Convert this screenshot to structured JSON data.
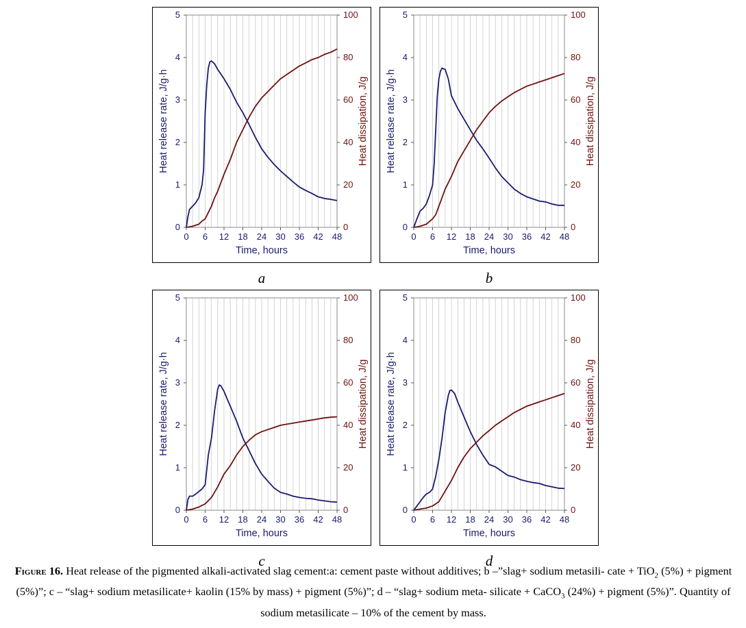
{
  "chart_data": [
    {
      "panel": "a",
      "type": "line",
      "xlabel": "Time, hours",
      "ylabel_left": "Heat release rate, J/g·h",
      "ylabel_right": "Heat dissipation, J/g",
      "xlim": [
        0,
        48
      ],
      "ylim_left": [
        0,
        5
      ],
      "ylim_right": [
        0,
        100
      ],
      "x_ticks": [
        "0",
        "6",
        "12",
        "18",
        "24",
        "30",
        "36",
        "42",
        "48"
      ],
      "y_ticks_left": [
        "0",
        "1",
        "2",
        "3",
        "4",
        "5"
      ],
      "y_ticks_right": [
        "0",
        "20",
        "40",
        "60",
        "80",
        "100"
      ],
      "grid": "vertical",
      "colors": {
        "rate": "#1a1a6e",
        "dissipation": "#6e1010"
      },
      "series": [
        {
          "axis": "left",
          "x": [
            0,
            0.5,
            1,
            2,
            3,
            4,
            5,
            5.5,
            6,
            6.5,
            7,
            7.5,
            8,
            9,
            10,
            12,
            14,
            16,
            18,
            20,
            22,
            24,
            26,
            28,
            30,
            32,
            34,
            36,
            38,
            40,
            42,
            44,
            46,
            48
          ],
          "y": [
            0,
            0.25,
            0.42,
            0.5,
            0.58,
            0.7,
            1.0,
            1.35,
            2.7,
            3.35,
            3.75,
            3.9,
            3.92,
            3.85,
            3.72,
            3.5,
            3.25,
            2.95,
            2.7,
            2.42,
            2.12,
            1.85,
            1.65,
            1.48,
            1.33,
            1.2,
            1.07,
            0.95,
            0.87,
            0.8,
            0.72,
            0.68,
            0.66,
            0.63
          ]
        },
        {
          "axis": "right",
          "x": [
            0,
            2,
            4,
            5,
            6,
            7,
            8,
            9,
            10,
            12,
            14,
            16,
            18,
            20,
            22,
            24,
            26,
            28,
            30,
            32,
            34,
            36,
            38,
            40,
            42,
            44,
            46,
            48
          ],
          "y": [
            0,
            0.5,
            1.5,
            3,
            4,
            7,
            10,
            14,
            17,
            25,
            32,
            40,
            46,
            52,
            57,
            61,
            64,
            67,
            70,
            72,
            74,
            76,
            77.5,
            79,
            80,
            81.5,
            82.5,
            84
          ]
        }
      ]
    },
    {
      "panel": "b",
      "type": "line",
      "xlabel": "Time, hours",
      "ylabel_left": "Heat release rate, J/g·h",
      "ylabel_right": "Heat dissipation, J/g",
      "xlim": [
        0,
        48
      ],
      "ylim_left": [
        0,
        5
      ],
      "ylim_right": [
        0,
        100
      ],
      "x_ticks": [
        "0",
        "6",
        "12",
        "18",
        "24",
        "30",
        "36",
        "42",
        "48"
      ],
      "y_ticks_left": [
        "0",
        "1",
        "2",
        "3",
        "4",
        "5"
      ],
      "y_ticks_right": [
        "0",
        "20",
        "40",
        "60",
        "80",
        "100"
      ],
      "grid": "vertical",
      "colors": {
        "rate": "#1a1a6e",
        "dissipation": "#6e1010"
      },
      "series": [
        {
          "axis": "left",
          "x": [
            0,
            1,
            2,
            3,
            4,
            5,
            6,
            6.5,
            7,
            7.5,
            8,
            8.5,
            9,
            10,
            11,
            12,
            14,
            16,
            18,
            20,
            22,
            24,
            26,
            28,
            30,
            32,
            34,
            36,
            38,
            40,
            42,
            44,
            46,
            48
          ],
          "y": [
            0,
            0.2,
            0.38,
            0.45,
            0.55,
            0.75,
            1.0,
            1.5,
            2.3,
            3.1,
            3.5,
            3.68,
            3.75,
            3.72,
            3.5,
            3.1,
            2.8,
            2.55,
            2.3,
            2.05,
            1.85,
            1.63,
            1.4,
            1.2,
            1.05,
            0.9,
            0.8,
            0.72,
            0.67,
            0.62,
            0.6,
            0.55,
            0.52,
            0.52
          ]
        },
        {
          "axis": "right",
          "x": [
            0,
            2,
            4,
            6,
            7,
            8,
            9,
            10,
            12,
            14,
            16,
            18,
            20,
            22,
            24,
            26,
            28,
            30,
            32,
            34,
            36,
            38,
            40,
            42,
            44,
            46,
            48
          ],
          "y": [
            0,
            0.5,
            1.5,
            4,
            6,
            10,
            14,
            18,
            24,
            31,
            36,
            41,
            46,
            50,
            54,
            57,
            59.5,
            61.5,
            63.5,
            65,
            66.5,
            67.5,
            68.5,
            69.5,
            70.5,
            71.5,
            72.5
          ]
        }
      ]
    },
    {
      "panel": "c",
      "type": "line",
      "xlabel": "Time, hours",
      "ylabel_left": "Heat release rate, J/g·h",
      "ylabel_right": "Heat dissipation, J/g",
      "xlim": [
        0,
        48
      ],
      "ylim_left": [
        0,
        5
      ],
      "ylim_right": [
        0,
        100
      ],
      "x_ticks": [
        "0",
        "6",
        "12",
        "18",
        "24",
        "30",
        "36",
        "42",
        "48"
      ],
      "y_ticks_left": [
        "0",
        "1",
        "2",
        "3",
        "4",
        "5"
      ],
      "y_ticks_right": [
        "0",
        "20",
        "40",
        "60",
        "80",
        "100"
      ],
      "grid": "vertical",
      "colors": {
        "rate": "#1a1a6e",
        "dissipation": "#6e1010"
      },
      "series": [
        {
          "axis": "left",
          "x": [
            0,
            0.5,
            1,
            2,
            3,
            4,
            5,
            6,
            7,
            8,
            9,
            10,
            10.5,
            11,
            12,
            13,
            14,
            16,
            18,
            20,
            22,
            24,
            26,
            28,
            30,
            32,
            34,
            36,
            38,
            40,
            42,
            44,
            46,
            48
          ],
          "y": [
            0,
            0.25,
            0.33,
            0.33,
            0.38,
            0.44,
            0.5,
            0.6,
            1.3,
            1.7,
            2.35,
            2.85,
            2.95,
            2.93,
            2.8,
            2.62,
            2.45,
            2.1,
            1.7,
            1.4,
            1.1,
            0.85,
            0.68,
            0.52,
            0.42,
            0.38,
            0.33,
            0.3,
            0.28,
            0.27,
            0.24,
            0.22,
            0.2,
            0.19
          ]
        },
        {
          "axis": "right",
          "x": [
            0,
            2,
            4,
            6,
            8,
            10,
            12,
            14,
            16,
            18,
            20,
            22,
            24,
            26,
            28,
            30,
            32,
            34,
            36,
            38,
            40,
            42,
            44,
            46,
            48
          ],
          "y": [
            0,
            0.5,
            1.5,
            3,
            6,
            11,
            17,
            21,
            26,
            30,
            33,
            35.5,
            37,
            38,
            39,
            40,
            40.5,
            41,
            41.5,
            42,
            42.5,
            43,
            43.5,
            43.8,
            44
          ]
        }
      ]
    },
    {
      "panel": "d",
      "type": "line",
      "xlabel": "Time, hours",
      "ylabel_left": "Heat release rate, J/g·h",
      "ylabel_right": "Heat dissipation, J/g",
      "xlim": [
        0,
        48
      ],
      "ylim_left": [
        0,
        5
      ],
      "ylim_right": [
        0,
        100
      ],
      "x_ticks": [
        "0",
        "6",
        "12",
        "18",
        "24",
        "30",
        "36",
        "42",
        "48"
      ],
      "y_ticks_left": [
        "0",
        "1",
        "2",
        "3",
        "4",
        "5"
      ],
      "y_ticks_right": [
        "0",
        "20",
        "40",
        "60",
        "80",
        "100"
      ],
      "grid": "vertical",
      "colors": {
        "rate": "#1a1a6e",
        "dissipation": "#6e1010"
      },
      "series": [
        {
          "axis": "left",
          "x": [
            0,
            1,
            2,
            3,
            4,
            5,
            6,
            7,
            8,
            9,
            10,
            11,
            11.5,
            12,
            13,
            14,
            16,
            18,
            20,
            22,
            24,
            26,
            28,
            30,
            32,
            34,
            36,
            38,
            40,
            42,
            44,
            46,
            48
          ],
          "y": [
            0,
            0.1,
            0.2,
            0.3,
            0.38,
            0.42,
            0.5,
            0.8,
            1.2,
            1.7,
            2.3,
            2.7,
            2.82,
            2.83,
            2.75,
            2.55,
            2.2,
            1.85,
            1.55,
            1.3,
            1.08,
            1.02,
            0.92,
            0.82,
            0.78,
            0.72,
            0.68,
            0.65,
            0.63,
            0.58,
            0.55,
            0.52,
            0.51
          ]
        },
        {
          "axis": "right",
          "x": [
            0,
            2,
            4,
            6,
            8,
            10,
            12,
            14,
            16,
            18,
            20,
            22,
            24,
            26,
            28,
            30,
            32,
            34,
            36,
            38,
            40,
            42,
            44,
            46,
            48
          ],
          "y": [
            0,
            0.5,
            1,
            2,
            4,
            9,
            14,
            20,
            25,
            29,
            32,
            35,
            37.5,
            40,
            42,
            44,
            46,
            47.5,
            49,
            50,
            51,
            52,
            53,
            54,
            55
          ]
        }
      ]
    }
  ],
  "panel_labels": [
    "a",
    "b",
    "c",
    "d"
  ],
  "caption": {
    "figure_label": "Figure 16.",
    "text_before_tio2": " Heat release of the pigmented alkali-activated slag cement:a: cement paste without additives; b –”slag+ sodium metasili- cate + TiO",
    "sub_2a": "2",
    "text_before_caco3": " (5%) + pigment (5%)”; c – “slag+ sodium metasilicate+ kaolin (15% by mass) + pigment (5%)”; d – “slag+ sodium meta- silicate + CaCO",
    "sub_3": "3",
    "text_end": " (24%) + pigment (5%)”. Quantity of sodium metasilicate – 10% of the cement by mass."
  }
}
